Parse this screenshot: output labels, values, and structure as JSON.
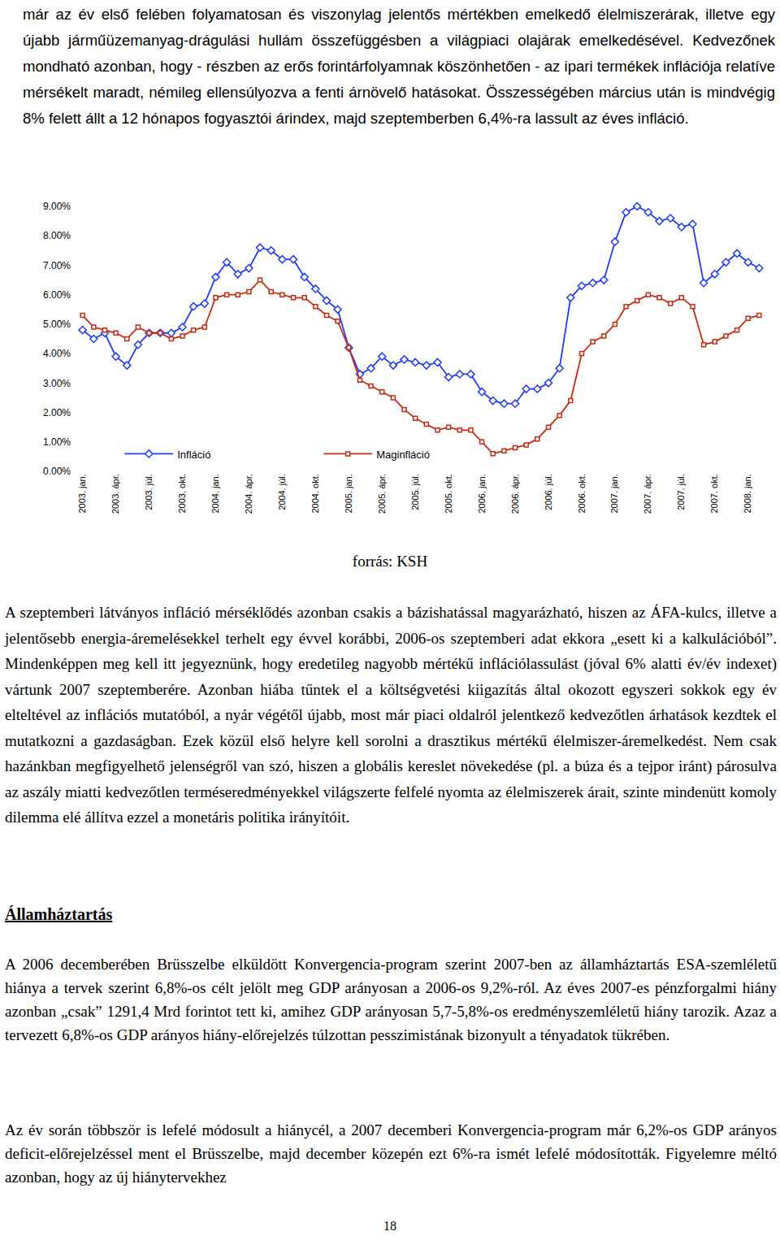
{
  "intro_paragraph": "már az év első felében folyamatosan és viszonylag jelentős mértékben emelkedő élelmiszerárak, illetve egy újabb járműüzemanyag-drágulási hullám összefüggésben a világpiaci olajárak emelkedésével. Kedvezőnek mondható azonban, hogy - részben az erős forintárfolyamnak köszönhetően - az ipari termékek inflációja relatíve mérsékelt maradt, némileg ellensúlyozva a fenti árnövelő hatásokat. Összességében március után is mindvégig 8% felett állt a 12 hónapos fogyasztói árindex, majd szeptemberben 6,4%-ra lassult az éves infláció.",
  "chart_data": {
    "type": "line",
    "categories": [
      "2003. jan.",
      null,
      null,
      "2003. ápr.",
      null,
      null,
      "2003. júl.",
      null,
      null,
      "2003. okt.",
      null,
      null,
      "2004. jan.",
      null,
      null,
      "2004. ápr.",
      null,
      null,
      "2004. júl.",
      null,
      null,
      "2004. okt.",
      null,
      null,
      "2005. jan.",
      null,
      null,
      "2005. ápr.",
      null,
      null,
      "2005. júl.",
      null,
      null,
      "2005. okt.",
      null,
      null,
      "2006. jan.",
      null,
      null,
      "2006. ápr.",
      null,
      null,
      "2006. júl.",
      null,
      null,
      "2006. okt.",
      null,
      null,
      "2007. jan.",
      null,
      null,
      "2007. ápr.",
      null,
      null,
      "2007. júl.",
      null,
      null,
      "2007. okt.",
      null,
      null,
      "2008. jan.",
      null
    ],
    "series": [
      {
        "name": "Infláció",
        "color": "#1f3cff",
        "marker": "diamond",
        "line_style": "solid",
        "values": [
          4.8,
          4.5,
          4.7,
          3.9,
          3.6,
          4.3,
          4.7,
          4.7,
          4.7,
          4.9,
          5.6,
          5.7,
          6.6,
          7.1,
          6.7,
          6.9,
          7.6,
          7.5,
          7.2,
          7.2,
          6.6,
          6.2,
          5.8,
          5.5,
          4.2,
          3.3,
          3.5,
          3.9,
          3.6,
          3.8,
          3.7,
          3.6,
          3.7,
          3.2,
          3.3,
          3.3,
          2.7,
          2.4,
          2.3,
          2.3,
          2.8,
          2.8,
          3.0,
          3.5,
          5.9,
          6.3,
          6.4,
          6.5,
          7.8,
          8.8,
          9.0,
          8.8,
          8.5,
          8.6,
          8.3,
          8.4,
          6.4,
          6.7,
          7.1,
          7.4,
          7.1,
          6.9
        ]
      },
      {
        "name": "Maginfláció",
        "color": "#cc2a10",
        "marker": "square",
        "line_style": "solid",
        "values": [
          5.3,
          4.9,
          4.8,
          4.7,
          4.5,
          4.9,
          4.7,
          4.7,
          4.5,
          4.6,
          4.8,
          4.9,
          5.9,
          6.0,
          6.0,
          6.1,
          6.5,
          6.1,
          6.0,
          5.9,
          5.9,
          5.6,
          5.3,
          5.1,
          4.2,
          3.1,
          2.9,
          2.7,
          2.5,
          2.1,
          1.8,
          1.6,
          1.4,
          1.5,
          1.4,
          1.4,
          1.0,
          0.6,
          0.7,
          0.8,
          0.9,
          1.1,
          1.5,
          1.9,
          2.4,
          4.0,
          4.4,
          4.6,
          5.0,
          5.6,
          5.8,
          6.0,
          5.9,
          5.7,
          5.9,
          5.6,
          4.3,
          4.4,
          4.6,
          4.8,
          5.2,
          5.3
        ]
      }
    ],
    "ylim": [
      0,
      9
    ],
    "yticks": [
      {
        "value": 0,
        "label": "0.00%"
      },
      {
        "value": 1,
        "label": "1.00%"
      },
      {
        "value": 2,
        "label": "2.00%"
      },
      {
        "value": 3,
        "label": "3.00%"
      },
      {
        "value": 4,
        "label": "4.00%"
      },
      {
        "value": 5,
        "label": "5.00%"
      },
      {
        "value": 6,
        "label": "6.00%"
      },
      {
        "value": 7,
        "label": "7.00%"
      },
      {
        "value": 8,
        "label": "8.00%"
      },
      {
        "value": 9,
        "label": "9.00%"
      }
    ],
    "grid": false,
    "legend": "bottom left"
  },
  "source": "forrás: KSH",
  "paragraph_after_chart": "A szeptemberi látványos infláció mérséklődés azonban csakis a bázishatással magyarázható, hiszen az ÁFA-kulcs, illetve a jelentősebb energia-áremelésekkel terhelt egy évvel korábbi, 2006-os szeptemberi adat ekkora „esett ki a kalkulációból”. Mindenképpen meg kell itt jegyeznünk, hogy eredetileg nagyobb mértékű inflációlassulást (jóval 6% alatti év/év indexet) vártunk 2007 szeptemberére. Azonban hiába tűntek el a költségvetési kiigazítás által okozott egyszeri sokkok egy év elteltével az inflációs mutatóból, a nyár végétől újabb, most már piaci oldalról jelentkező kedvezőtlen árhatások kezdtek el mutatkozni a gazdaságban. Ezek közül első helyre kell sorolni a drasztikus mértékű élelmiszer-áremelkedést. Nem csak hazánkban megfigyelhető jelenségről van szó, hiszen a globális kereslet növekedése (pl. a búza és a tejpor iránt) párosulva az aszály miatti kedvezőtlen terméseredményekkel világszerte felfelé nyomta az élelmiszerek árait, szinte mindenütt komoly dilemma elé állítva ezzel a monetáris politika irányítóit.",
  "heading": "Államháztartás",
  "section_paragraphs": [
    "A 2006 decemberében Brüsszelbe elküldött Konvergencia-program szerint 2007-ben az államháztartás ESA-szemléletű hiánya a tervek szerint 6,8%-os célt jelölt meg GDP arányosan a 2006-os 9,2%-ról. Az éves 2007-es pénzforgalmi hiány azonban „csak” 1291,4 Mrd forintot tett ki, amihez GDP arányosan 5,7-5,8%-os eredményszemléletű hiány tarozik. Azaz a tervezett 6,8%-os GDP arányos hiány-előrejelzés túlzottan pesszimistának bizonyult a tényadatok tükrében.",
    "Az év során többször is lefelé módosult a hiánycél, a 2007 decemberi Konvergencia-program már 6,2%-os GDP arányos deficit-előrejelzéssel ment el Brüsszelbe, majd december közepén ezt 6%-ra ismét lefelé módosították. Figyelemre méltó azonban, hogy az új hiánytervekhez"
  ],
  "page_number": "18"
}
